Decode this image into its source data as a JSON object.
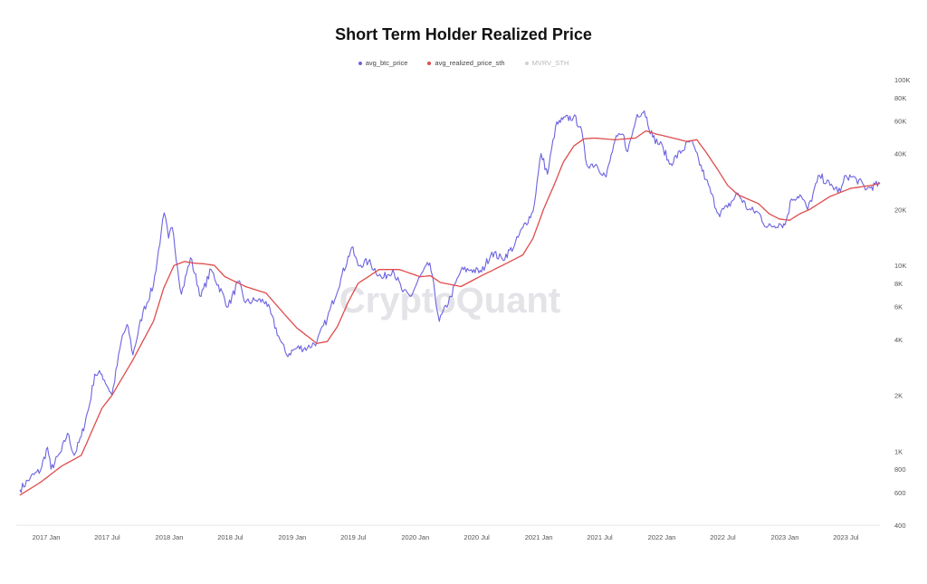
{
  "chart_data": {
    "type": "line",
    "title": "Short Term Holder Realized Price",
    "watermark": "CryptoQuant",
    "y_scale": "log",
    "ylim": [
      400,
      100000
    ],
    "y_ticks": [
      {
        "value": 400,
        "label": "400"
      },
      {
        "value": 600,
        "label": "600"
      },
      {
        "value": 800,
        "label": "800"
      },
      {
        "value": 1000,
        "label": "1K"
      },
      {
        "value": 2000,
        "label": "2K"
      },
      {
        "value": 4000,
        "label": "4K"
      },
      {
        "value": 6000,
        "label": "6K"
      },
      {
        "value": 8000,
        "label": "8K"
      },
      {
        "value": 10000,
        "label": "10K"
      },
      {
        "value": 20000,
        "label": "20K"
      },
      {
        "value": 40000,
        "label": "40K"
      },
      {
        "value": 60000,
        "label": "60K"
      },
      {
        "value": 80000,
        "label": "80K"
      },
      {
        "value": 100000,
        "label": "100K"
      }
    ],
    "xlim": [
      "2016-10-15",
      "2023-10-10"
    ],
    "x_ticks": [
      {
        "value": "2017-01-01",
        "label": "2017 Jan"
      },
      {
        "value": "2017-07-01",
        "label": "2017 Jul"
      },
      {
        "value": "2018-01-01",
        "label": "2018 Jan"
      },
      {
        "value": "2018-07-01",
        "label": "2018 Jul"
      },
      {
        "value": "2019-01-01",
        "label": "2019 Jan"
      },
      {
        "value": "2019-07-01",
        "label": "2019 Jul"
      },
      {
        "value": "2020-01-01",
        "label": "2020 Jan"
      },
      {
        "value": "2020-07-01",
        "label": "2020 Jul"
      },
      {
        "value": "2021-01-01",
        "label": "2021 Jan"
      },
      {
        "value": "2021-07-01",
        "label": "2021 Jul"
      },
      {
        "value": "2022-01-01",
        "label": "2022 Jan"
      },
      {
        "value": "2022-07-01",
        "label": "2022 Jul"
      },
      {
        "value": "2023-01-01",
        "label": "2023 Jan"
      },
      {
        "value": "2023-07-01",
        "label": "2023 Jul"
      }
    ],
    "legend": {
      "placement": "top"
    },
    "grid": false,
    "series": [
      {
        "name": "avg_btc_price",
        "color": "#6c63e0",
        "visible": true,
        "points": [
          [
            "2016-10-15",
            620
          ],
          [
            "2016-11-15",
            720
          ],
          [
            "2016-12-15",
            790
          ],
          [
            "2017-01-05",
            1050
          ],
          [
            "2017-01-15",
            800
          ],
          [
            "2017-02-15",
            1000
          ],
          [
            "2017-03-05",
            1250
          ],
          [
            "2017-03-25",
            950
          ],
          [
            "2017-04-15",
            1200
          ],
          [
            "2017-05-10",
            1800
          ],
          [
            "2017-05-25",
            2600
          ],
          [
            "2017-06-15",
            2600
          ],
          [
            "2017-07-15",
            2000
          ],
          [
            "2017-08-15",
            4200
          ],
          [
            "2017-09-01",
            4700
          ],
          [
            "2017-09-15",
            3300
          ],
          [
            "2017-10-15",
            5600
          ],
          [
            "2017-11-15",
            7800
          ],
          [
            "2017-12-08",
            15000
          ],
          [
            "2017-12-17",
            19200
          ],
          [
            "2017-12-30",
            14000
          ],
          [
            "2018-01-10",
            16000
          ],
          [
            "2018-02-06",
            7000
          ],
          [
            "2018-03-05",
            11000
          ],
          [
            "2018-04-05",
            6800
          ],
          [
            "2018-05-05",
            9500
          ],
          [
            "2018-06-25",
            6000
          ],
          [
            "2018-07-25",
            8200
          ],
          [
            "2018-08-15",
            6300
          ],
          [
            "2018-09-15",
            6500
          ],
          [
            "2018-10-15",
            6400
          ],
          [
            "2018-11-25",
            4000
          ],
          [
            "2018-12-15",
            3300
          ],
          [
            "2019-01-15",
            3600
          ],
          [
            "2019-02-15",
            3600
          ],
          [
            "2019-03-15",
            3900
          ],
          [
            "2019-04-15",
            5200
          ],
          [
            "2019-05-25",
            8500
          ],
          [
            "2019-06-26",
            12500
          ],
          [
            "2019-07-15",
            10000
          ],
          [
            "2019-08-15",
            10500
          ],
          [
            "2019-09-25",
            8500
          ],
          [
            "2019-10-26",
            9500
          ],
          [
            "2019-11-25",
            7200
          ],
          [
            "2019-12-18",
            6800
          ],
          [
            "2020-01-15",
            8700
          ],
          [
            "2020-02-13",
            10300
          ],
          [
            "2020-03-12",
            5000
          ],
          [
            "2020-04-15",
            6800
          ],
          [
            "2020-05-15",
            9400
          ],
          [
            "2020-06-15",
            9500
          ],
          [
            "2020-07-15",
            9200
          ],
          [
            "2020-08-15",
            11800
          ],
          [
            "2020-09-15",
            10800
          ],
          [
            "2020-10-21",
            12800
          ],
          [
            "2020-11-15",
            16000
          ],
          [
            "2020-12-15",
            19500
          ],
          [
            "2021-01-08",
            40000
          ],
          [
            "2021-01-27",
            31000
          ],
          [
            "2021-02-20",
            56000
          ],
          [
            "2021-03-13",
            61000
          ],
          [
            "2021-04-14",
            63000
          ],
          [
            "2021-05-05",
            56000
          ],
          [
            "2021-05-23",
            35000
          ],
          [
            "2021-06-20",
            35000
          ],
          [
            "2021-07-20",
            30000
          ],
          [
            "2021-08-15",
            47000
          ],
          [
            "2021-09-07",
            51000
          ],
          [
            "2021-09-22",
            41000
          ],
          [
            "2021-10-20",
            65000
          ],
          [
            "2021-11-10",
            68000
          ],
          [
            "2021-12-05",
            49000
          ],
          [
            "2022-01-05",
            43000
          ],
          [
            "2022-01-24",
            35000
          ],
          [
            "2022-03-28",
            47000
          ],
          [
            "2022-05-12",
            29000
          ],
          [
            "2022-06-18",
            19000
          ],
          [
            "2022-07-15",
            20500
          ],
          [
            "2022-08-14",
            24500
          ],
          [
            "2022-09-15",
            20000
          ],
          [
            "2022-10-15",
            19200
          ],
          [
            "2022-11-09",
            16000
          ],
          [
            "2022-12-15",
            16800
          ],
          [
            "2023-01-01",
            16500
          ],
          [
            "2023-01-21",
            22800
          ],
          [
            "2023-02-15",
            24000
          ],
          [
            "2023-03-10",
            20000
          ],
          [
            "2023-04-14",
            30500
          ],
          [
            "2023-05-15",
            27000
          ],
          [
            "2023-06-15",
            25000
          ],
          [
            "2023-07-01",
            30500
          ],
          [
            "2023-08-01",
            29200
          ],
          [
            "2023-09-01",
            25800
          ],
          [
            "2023-09-15",
            26500
          ],
          [
            "2023-10-10",
            27500
          ]
        ]
      },
      {
        "name": "avg_realized_price_sth",
        "color": "#e04b4b",
        "visible": true,
        "points": [
          [
            "2016-10-15",
            580
          ],
          [
            "2016-12-15",
            680
          ],
          [
            "2017-02-15",
            830
          ],
          [
            "2017-04-15",
            950
          ],
          [
            "2017-06-15",
            1700
          ],
          [
            "2017-07-15",
            2000
          ],
          [
            "2017-09-15",
            3100
          ],
          [
            "2017-11-15",
            5000
          ],
          [
            "2017-12-15",
            7500
          ],
          [
            "2018-01-15",
            10000
          ],
          [
            "2018-02-15",
            10500
          ],
          [
            "2018-03-15",
            10300
          ],
          [
            "2018-04-15",
            10200
          ],
          [
            "2018-05-15",
            10000
          ],
          [
            "2018-06-15",
            8700
          ],
          [
            "2018-08-15",
            7700
          ],
          [
            "2018-10-15",
            7100
          ],
          [
            "2018-12-15",
            5300
          ],
          [
            "2019-01-15",
            4600
          ],
          [
            "2019-03-15",
            3800
          ],
          [
            "2019-04-15",
            3900
          ],
          [
            "2019-05-15",
            4700
          ],
          [
            "2019-06-15",
            6300
          ],
          [
            "2019-07-15",
            8000
          ],
          [
            "2019-09-15",
            9500
          ],
          [
            "2019-11-15",
            9500
          ],
          [
            "2020-01-15",
            8700
          ],
          [
            "2020-02-15",
            8800
          ],
          [
            "2020-03-15",
            8100
          ],
          [
            "2020-05-15",
            7700
          ],
          [
            "2020-07-15",
            8800
          ],
          [
            "2020-09-15",
            10000
          ],
          [
            "2020-11-15",
            11400
          ],
          [
            "2020-12-15",
            14000
          ],
          [
            "2021-01-15",
            20000
          ],
          [
            "2021-02-15",
            27000
          ],
          [
            "2021-03-15",
            36000
          ],
          [
            "2021-04-15",
            44000
          ],
          [
            "2021-05-15",
            48000
          ],
          [
            "2021-06-15",
            48500
          ],
          [
            "2021-08-15",
            47500
          ],
          [
            "2021-10-15",
            48500
          ],
          [
            "2021-11-15",
            53000
          ],
          [
            "2021-12-15",
            51000
          ],
          [
            "2022-01-15",
            49500
          ],
          [
            "2022-03-15",
            46500
          ],
          [
            "2022-04-15",
            47500
          ],
          [
            "2022-05-15",
            40000
          ],
          [
            "2022-06-15",
            33000
          ],
          [
            "2022-07-15",
            27000
          ],
          [
            "2022-08-15",
            24000
          ],
          [
            "2022-10-15",
            21500
          ],
          [
            "2022-11-15",
            19000
          ],
          [
            "2022-12-15",
            17800
          ],
          [
            "2023-01-15",
            17500
          ],
          [
            "2023-02-15",
            19000
          ],
          [
            "2023-03-15",
            20000
          ],
          [
            "2023-05-15",
            23500
          ],
          [
            "2023-07-15",
            26000
          ],
          [
            "2023-09-15",
            27000
          ],
          [
            "2023-10-10",
            27700
          ]
        ]
      },
      {
        "name": "MVRV_STH",
        "color": "#bdbdbd",
        "visible": false,
        "points": []
      }
    ]
  }
}
